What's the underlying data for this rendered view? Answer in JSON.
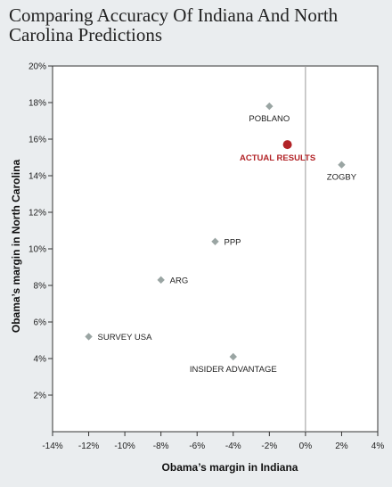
{
  "chart_data": {
    "type": "scatter",
    "title": "Comparing Accuracy Of Indiana And North Carolina Predictions",
    "xlabel": "Obama’s margin in Indiana",
    "ylabel": "Obama’s margin in North Carolina",
    "xlim": [
      -14,
      4
    ],
    "ylim": [
      0,
      20
    ],
    "x_ticks": [
      -14,
      -12,
      -10,
      -8,
      -6,
      -4,
      -2,
      0,
      2,
      4
    ],
    "y_ticks": [
      2,
      4,
      6,
      8,
      10,
      12,
      14,
      16,
      18,
      20
    ],
    "x_tick_labels": [
      "-14%",
      "-12%",
      "-10%",
      "-8%",
      "-6%",
      "-4%",
      "-2%",
      "0%",
      "2%",
      "4%"
    ],
    "y_tick_labels": [
      "2%",
      "4%",
      "6%",
      "8%",
      "10%",
      "12%",
      "14%",
      "16%",
      "18%",
      "20%"
    ],
    "grid": false,
    "reference_line_x": 0,
    "points": [
      {
        "label": "POBLANO",
        "x": -2,
        "y": 17.8,
        "marker": "diamond",
        "color": "#9aa5a3",
        "label_pos": "below"
      },
      {
        "label": "ACTUAL RESULTS",
        "x": -1,
        "y": 15.7,
        "marker": "circle",
        "color": "#b22327",
        "label_pos": "below-left",
        "highlight": true
      },
      {
        "label": "ZOGBY",
        "x": 2,
        "y": 14.6,
        "marker": "diamond",
        "color": "#9aa5a3",
        "label_pos": "below"
      },
      {
        "label": "PPP",
        "x": -5,
        "y": 10.4,
        "marker": "diamond",
        "color": "#9aa5a3",
        "label_pos": "right"
      },
      {
        "label": "ARG",
        "x": -8,
        "y": 8.3,
        "marker": "diamond",
        "color": "#9aa5a3",
        "label_pos": "right"
      },
      {
        "label": "SURVEY USA",
        "x": -12,
        "y": 5.2,
        "marker": "diamond",
        "color": "#9aa5a3",
        "label_pos": "right"
      },
      {
        "label": "INSIDER ADVANTAGE",
        "x": -4,
        "y": 4.1,
        "marker": "diamond",
        "color": "#9aa5a3",
        "label_pos": "below"
      }
    ]
  }
}
